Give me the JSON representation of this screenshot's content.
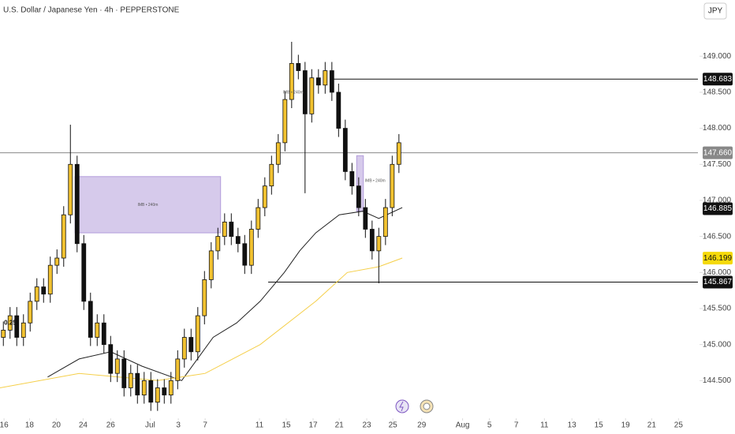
{
  "chart_data": {
    "type": "candlestick",
    "title": "U.S. Dollar / Japanese Yen · 4h · PEPPERSTONE",
    "currency": "JPY",
    "up_color": "#f2c230",
    "down_color": "#111111",
    "open": [
      145.1,
      145.2,
      145.4,
      145.1,
      145.3,
      145.6,
      145.8,
      145.7,
      146.1,
      146.2,
      146.8,
      147.5,
      146.4,
      145.6,
      145.1,
      145.3,
      145.0,
      144.6,
      144.8,
      144.4,
      144.6,
      144.3,
      144.5,
      144.2,
      144.4,
      144.3,
      144.5,
      144.8,
      145.1,
      144.9,
      145.4,
      145.9,
      146.3,
      146.5,
      146.7,
      146.5,
      146.4,
      146.1,
      146.6,
      146.9,
      147.2,
      147.5,
      147.8,
      148.4,
      148.9,
      148.8,
      148.2,
      148.7,
      148.6,
      148.8,
      148.5,
      148.0,
      147.4,
      147.2,
      146.9,
      146.6,
      146.3,
      146.5,
      146.9,
      147.5
    ],
    "high": [
      145.32,
      145.52,
      145.52,
      145.42,
      145.72,
      145.92,
      145.92,
      146.22,
      146.32,
      146.92,
      148.05,
      147.62,
      146.52,
      145.72,
      145.42,
      145.42,
      145.12,
      144.92,
      144.92,
      144.72,
      144.72,
      144.62,
      144.62,
      144.52,
      144.52,
      144.62,
      144.92,
      145.22,
      145.22,
      145.52,
      146.02,
      146.42,
      146.62,
      146.82,
      146.82,
      146.62,
      146.52,
      146.72,
      147.02,
      147.32,
      147.62,
      147.92,
      148.52,
      149.2,
      149.02,
      148.92,
      148.82,
      148.82,
      148.92,
      148.92,
      148.62,
      148.12,
      147.52,
      147.32,
      147.02,
      146.72,
      146.62,
      147.02,
      147.62,
      147.92
    ],
    "low": [
      144.98,
      145.08,
      144.98,
      144.98,
      145.18,
      145.48,
      145.58,
      145.58,
      145.98,
      146.08,
      146.68,
      146.28,
      145.48,
      144.98,
      144.98,
      144.88,
      144.48,
      144.48,
      144.28,
      144.28,
      144.18,
      144.18,
      144.08,
      144.08,
      144.18,
      144.18,
      144.38,
      144.68,
      144.78,
      144.78,
      145.28,
      145.78,
      146.18,
      146.38,
      146.38,
      146.28,
      145.98,
      145.98,
      146.48,
      146.78,
      147.08,
      147.38,
      147.68,
      148.28,
      148.68,
      147.1,
      148.08,
      148.48,
      148.48,
      148.38,
      147.88,
      147.28,
      147.08,
      146.78,
      146.48,
      146.18,
      145.85,
      146.38,
      146.78,
      147.38
    ],
    "close": [
      145.2,
      145.4,
      145.1,
      145.3,
      145.6,
      145.8,
      145.7,
      146.1,
      146.2,
      146.8,
      147.5,
      146.4,
      145.6,
      145.1,
      145.3,
      145.0,
      144.6,
      144.8,
      144.4,
      144.6,
      144.3,
      144.5,
      144.2,
      144.4,
      144.3,
      144.5,
      144.8,
      145.1,
      144.9,
      145.4,
      145.9,
      146.3,
      146.5,
      146.7,
      146.5,
      146.4,
      146.1,
      146.6,
      146.9,
      147.2,
      147.5,
      147.8,
      148.4,
      148.9,
      148.8,
      148.2,
      148.7,
      148.6,
      148.8,
      148.5,
      148.0,
      147.4,
      147.2,
      146.9,
      146.6,
      146.3,
      146.5,
      146.9,
      147.5,
      147.8
    ],
    "lines": [
      {
        "color": "#222222",
        "x": [
          7.1,
          11.8,
          16.5,
          21.2,
          27.1,
          31.8,
          35.3,
          38.8,
          42.4,
          44.7,
          47.1,
          50.6,
          54.1,
          56.5,
          60
        ],
        "values": [
          144.55,
          144.8,
          144.9,
          144.7,
          144.5,
          145.1,
          145.3,
          145.6,
          146.0,
          146.3,
          146.55,
          146.8,
          146.85,
          146.75,
          146.9
        ]
      },
      {
        "color": "#f5cf4a",
        "x": [
          0,
          11.8,
          23.5,
          30.6,
          38.8,
          47.1,
          51.8,
          56.5,
          60
        ],
        "values": [
          144.4,
          144.6,
          144.5,
          144.6,
          145.0,
          145.6,
          146.0,
          146.08,
          146.2
        ]
      }
    ],
    "zones": [
      {
        "x": [
          11.2,
          32.9
        ],
        "y": [
          146.55,
          147.33
        ],
        "label": "IMB • 240m"
      },
      {
        "x": [
          53.2,
          54.2
        ],
        "y": [
          146.85,
          147.62
        ],
        "label": "IMB • 240m"
      }
    ],
    "notes": [
      {
        "x": 42.2,
        "y": 148.5,
        "label": "IMB • 240m"
      },
      {
        "x": 0.6,
        "y": 145.3,
        "label": "0.25"
      }
    ],
    "levels": [
      {
        "value": 148.683,
        "label": "148.683",
        "from": 49.5,
        "color": "#111111"
      },
      {
        "value": 147.66,
        "label": "147.660",
        "from": 0,
        "color": "#888888"
      },
      {
        "value": 146.885,
        "label": "146.885",
        "color": "#111111"
      },
      {
        "value": 146.199,
        "label": "146.199",
        "color": "#f5d90a"
      },
      {
        "value": 145.867,
        "label": "145.867",
        "from": 40,
        "color": "#111111"
      }
    ],
    "ylim": [
      144.0,
      149.78
    ],
    "yticks": [
      {
        "value": 144.5,
        "label": "144.500"
      },
      {
        "value": 145,
        "label": "145.000"
      },
      {
        "value": 145.5,
        "label": "145.500"
      },
      {
        "value": 146,
        "label": "146.000"
      },
      {
        "value": 146.5,
        "label": "146.500"
      },
      {
        "value": 147,
        "label": "147.000"
      },
      {
        "value": 147.5,
        "label": "147.500"
      },
      {
        "value": 148,
        "label": "148.000"
      },
      {
        "value": 148.5,
        "label": "148.500"
      },
      {
        "value": 149,
        "label": "149.000"
      }
    ],
    "xlim": [
      0,
      104.1
    ],
    "xticks": [
      {
        "value": 0.6,
        "label": "16"
      },
      {
        "value": 4.4,
        "label": "18"
      },
      {
        "value": 8.4,
        "label": "20"
      },
      {
        "value": 12.4,
        "label": "24"
      },
      {
        "value": 16.5,
        "label": "26"
      },
      {
        "value": 22.4,
        "label": "Jul"
      },
      {
        "value": 26.6,
        "label": "3"
      },
      {
        "value": 30.6,
        "label": "7"
      },
      {
        "value": 38.7,
        "label": "11"
      },
      {
        "value": 42.7,
        "label": "15"
      },
      {
        "value": 46.7,
        "label": "17"
      },
      {
        "value": 50.6,
        "label": "21"
      },
      {
        "value": 54.7,
        "label": "23"
      },
      {
        "value": 58.6,
        "label": "25"
      },
      {
        "value": 62.9,
        "label": "29"
      },
      {
        "value": 69,
        "label": "Aug"
      },
      {
        "value": 73,
        "label": "5"
      },
      {
        "value": 77,
        "label": "7"
      },
      {
        "value": 81.2,
        "label": "11"
      },
      {
        "value": 85.3,
        "label": "13"
      },
      {
        "value": 89.3,
        "label": "15"
      },
      {
        "value": 93.3,
        "label": "19"
      },
      {
        "value": 97.2,
        "label": "21"
      },
      {
        "value": 101.2,
        "label": "25"
      }
    ]
  }
}
